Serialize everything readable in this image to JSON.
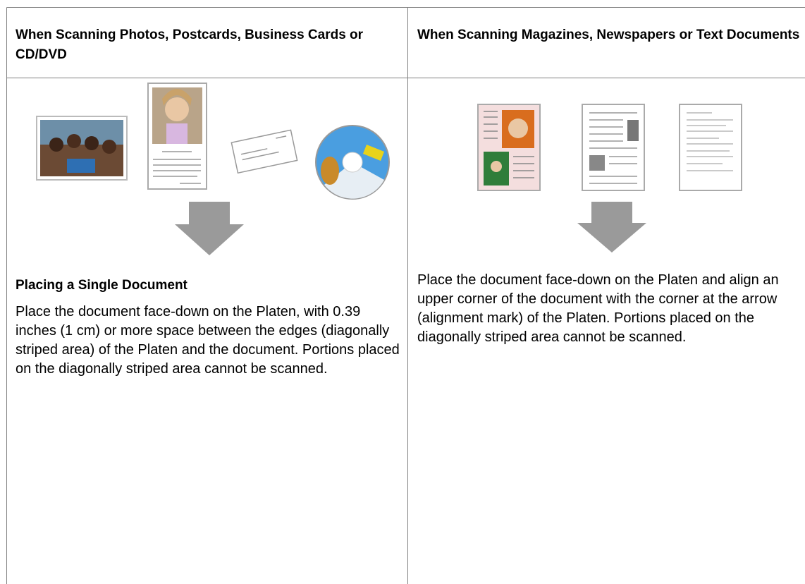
{
  "table": {
    "headers": [
      "When Scanning Photos, Postcards, Business Cards or CD/DVD",
      "When Scanning Magazines, Newspapers or Text Documents"
    ],
    "cells": [
      {
        "heading": "Placing a Single Document",
        "text": "Place the document face-down on the Platen, with 0.39 inches (1 cm) or more space between the edges (diagonally striped area) of the Platen and the document. Portions placed on the diagonally striped area cannot be scanned."
      },
      {
        "text": "Place the document face-down on the Platen and align an upper corner of the document with the corner at the arrow (alignment mark) of the Platen. Portions placed on the diagonally striped area cannot be scanned."
      }
    ]
  }
}
